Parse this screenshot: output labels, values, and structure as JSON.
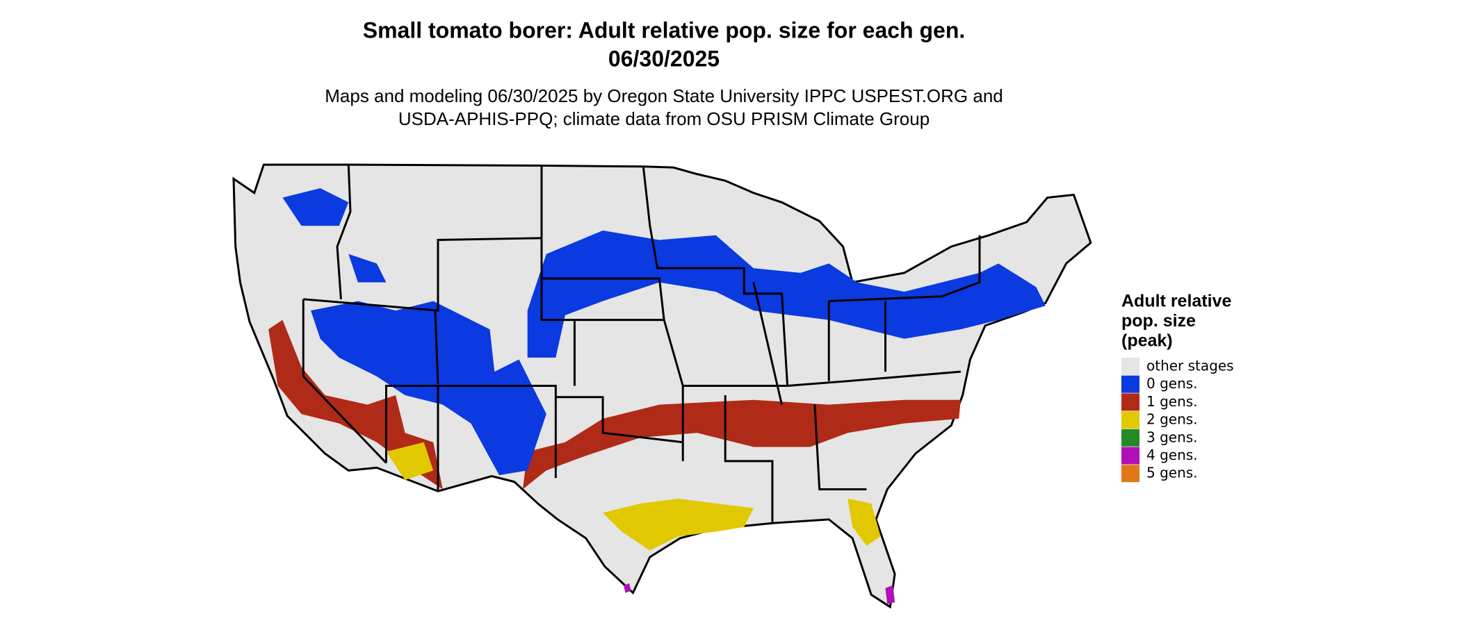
{
  "header": {
    "title": [
      "Small tomato borer: Adult relative pop. size for each gen.",
      "06/30/2025"
    ],
    "subtitle": [
      "Maps and modeling 06/30/2025 by Oregon State University IPPC USPEST.ORG and",
      "USDA-APHIS-PPQ; climate data from OSU PRISM Climate Group"
    ]
  },
  "legend": {
    "title": [
      "Adult relative",
      "pop. size",
      "(peak)"
    ],
    "items": [
      {
        "label": "other stages",
        "color": "#e5e5e5"
      },
      {
        "label": "0 gens.",
        "color": "#0a3ae0"
      },
      {
        "label": "1 gens.",
        "color": "#b02a18"
      },
      {
        "label": "2 gens.",
        "color": "#e2c800"
      },
      {
        "label": "3 gens.",
        "color": "#248a24"
      },
      {
        "label": "4 gens.",
        "color": "#b010b8"
      },
      {
        "label": "5 gens.",
        "color": "#e07818"
      }
    ]
  }
}
